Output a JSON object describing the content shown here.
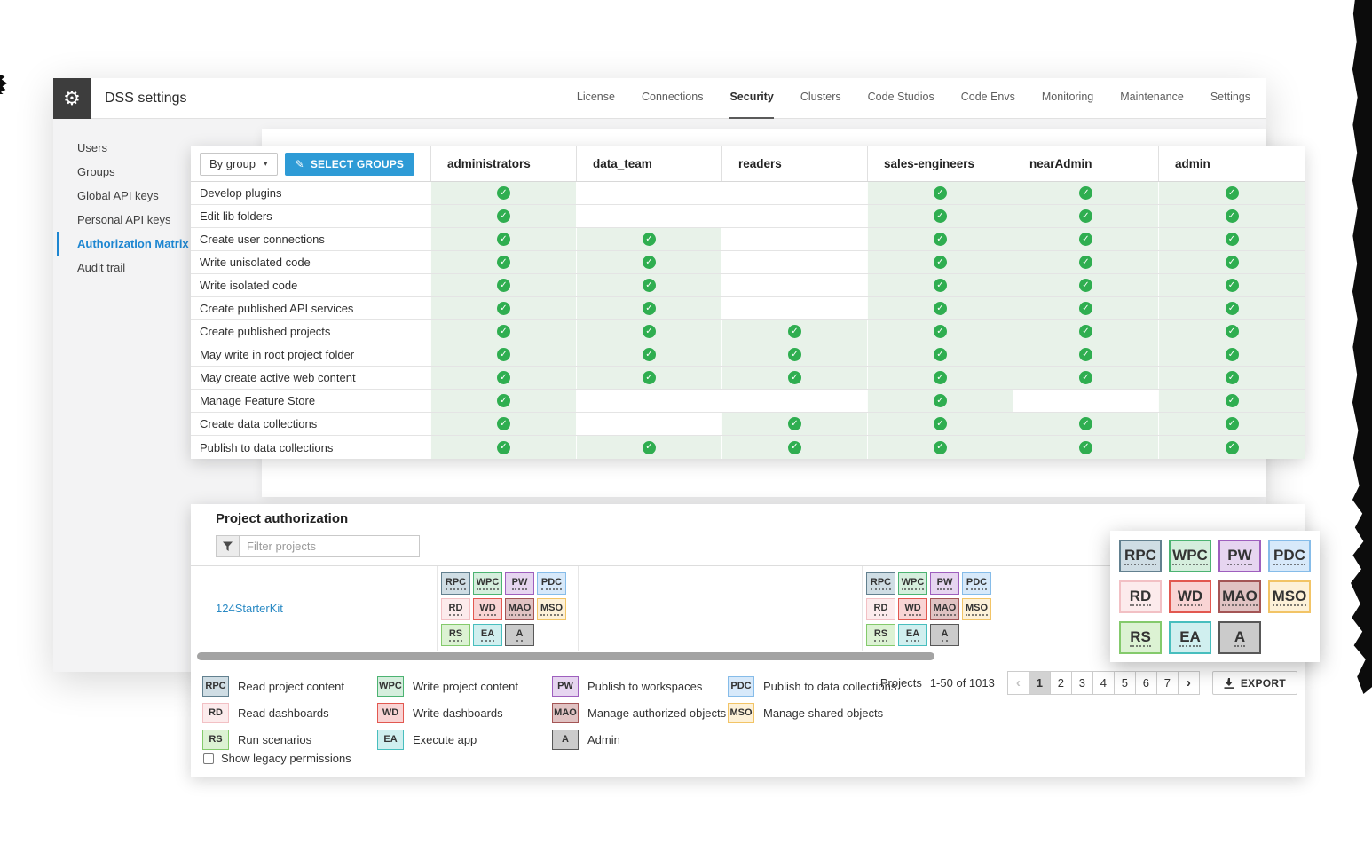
{
  "header": {
    "title": "DSS settings",
    "tabs": [
      {
        "label": "License",
        "active": false
      },
      {
        "label": "Connections",
        "active": false
      },
      {
        "label": "Security",
        "active": true
      },
      {
        "label": "Clusters",
        "active": false
      },
      {
        "label": "Code Studios",
        "active": false
      },
      {
        "label": "Code Envs",
        "active": false
      },
      {
        "label": "Monitoring",
        "active": false
      },
      {
        "label": "Maintenance",
        "active": false
      },
      {
        "label": "Settings",
        "active": false
      }
    ]
  },
  "sidebar": {
    "items": [
      {
        "label": "Users",
        "active": false
      },
      {
        "label": "Groups",
        "active": false
      },
      {
        "label": "Global API keys",
        "active": false
      },
      {
        "label": "Personal API keys",
        "active": false
      },
      {
        "label": "Authorization Matrix",
        "active": true
      },
      {
        "label": "Audit trail",
        "active": false
      }
    ]
  },
  "matrix": {
    "mode_select": "By group",
    "select_groups_label": "SELECT GROUPS",
    "groups": [
      "administrators",
      "data_team",
      "readers",
      "sales-engineers",
      "nearAdmin",
      "admin"
    ],
    "rows": [
      {
        "label": "Develop plugins",
        "checks": [
          1,
          0,
          0,
          1,
          1,
          1
        ]
      },
      {
        "label": "Edit lib folders",
        "checks": [
          1,
          0,
          0,
          1,
          1,
          1
        ]
      },
      {
        "label": "Create user connections",
        "checks": [
          1,
          1,
          0,
          1,
          1,
          1
        ]
      },
      {
        "label": "Write unisolated code",
        "checks": [
          1,
          1,
          0,
          1,
          1,
          1
        ]
      },
      {
        "label": "Write isolated code",
        "checks": [
          1,
          1,
          0,
          1,
          1,
          1
        ]
      },
      {
        "label": "Create published API services",
        "checks": [
          1,
          1,
          0,
          1,
          1,
          1
        ]
      },
      {
        "label": "Create published projects",
        "checks": [
          1,
          1,
          1,
          1,
          1,
          1
        ]
      },
      {
        "label": "May write in root project folder",
        "checks": [
          1,
          1,
          1,
          1,
          1,
          1
        ]
      },
      {
        "label": "May create active web content",
        "checks": [
          1,
          1,
          1,
          1,
          1,
          1
        ]
      },
      {
        "label": "Manage Feature Store",
        "checks": [
          1,
          0,
          0,
          1,
          0,
          1
        ]
      },
      {
        "label": "Create data collections",
        "checks": [
          1,
          0,
          1,
          1,
          1,
          1
        ]
      },
      {
        "label": "Publish to data collections",
        "checks": [
          1,
          1,
          1,
          1,
          1,
          1
        ]
      }
    ]
  },
  "project_auth": {
    "title": "Project authorization",
    "filter_placeholder": "Filter projects",
    "project_name": "124StarterKit",
    "badges": [
      {
        "code": "RPC",
        "label": "Read project content",
        "bg": "#cfdde4",
        "border": "#62808f"
      },
      {
        "code": "WPC",
        "label": "Write project content",
        "bg": "#d5eedd",
        "border": "#4cb372"
      },
      {
        "code": "PW",
        "label": "Publish to workspaces",
        "bg": "#e6d5f0",
        "border": "#9e5fbe"
      },
      {
        "code": "PDC",
        "label": "Publish to data collections",
        "bg": "#d7e9fa",
        "border": "#86bce9"
      },
      {
        "code": "RD",
        "label": "Read dashboards",
        "bg": "#fcebec",
        "border": "#f2c0c4"
      },
      {
        "code": "WD",
        "label": "Write dashboards",
        "bg": "#f9d4d4",
        "border": "#e25850"
      },
      {
        "code": "MAO",
        "label": "Manage authorized objects",
        "bg": "#e0c2c2",
        "border": "#a45555"
      },
      {
        "code": "MSO",
        "label": "Manage shared objects",
        "bg": "#fdf1d8",
        "border": "#f2c466"
      },
      {
        "code": "RS",
        "label": "Run scenarios",
        "bg": "#dcf2d3",
        "border": "#84ca6c"
      },
      {
        "code": "EA",
        "label": "Execute app",
        "bg": "#d0efef",
        "border": "#48bebe"
      },
      {
        "code": "A",
        "label": "Admin",
        "bg": "#cbcbcb",
        "border": "#585858"
      }
    ],
    "show_legacy_label": "Show legacy permissions",
    "pagination": {
      "summary_prefix": "Projects",
      "summary_range": "1-50 of 1013",
      "prev_label": "‹",
      "next_label": "›",
      "pages": [
        "1",
        "2",
        "3",
        "4",
        "5",
        "6",
        "7"
      ],
      "current_page": "1",
      "export_label": "EXPORT"
    }
  },
  "colors": {
    "accent_blue": "#2e9bd6",
    "link_blue": "#1d86d1",
    "check_green": "#2fae50",
    "check_cell_bg": "#e8f2e9"
  }
}
